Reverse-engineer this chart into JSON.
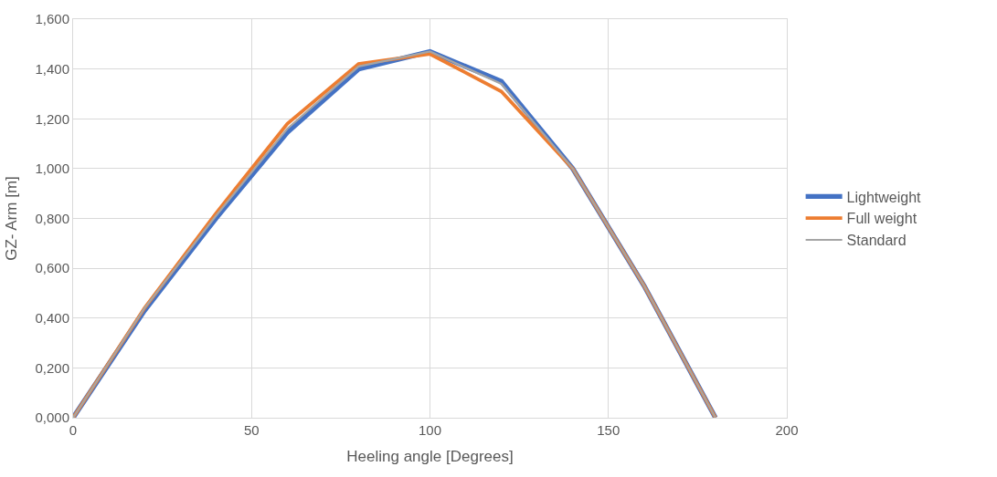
{
  "chart_data": {
    "type": "line",
    "xlabel": "Heeling angle [Degrees]",
    "ylabel": "GZ- Arm [m]",
    "x": [
      0,
      20,
      40,
      60,
      80,
      100,
      120,
      140,
      160,
      180
    ],
    "series": [
      {
        "name": "Lightweight",
        "color": "#4472c4",
        "values": [
          0,
          0.43,
          0.8,
          1.145,
          1.4,
          1.47,
          1.35,
          1.0,
          0.53,
          0
        ]
      },
      {
        "name": "Full weight",
        "color": "#ed7d31",
        "values": [
          0,
          0.44,
          0.82,
          1.18,
          1.42,
          1.46,
          1.31,
          1.0,
          0.53,
          0
        ]
      },
      {
        "name": "Standard",
        "color": "#a5a5a5",
        "values": [
          0,
          0.44,
          0.81,
          1.16,
          1.41,
          1.47,
          1.34,
          1.0,
          0.53,
          0
        ]
      }
    ],
    "xlim": [
      0,
      200
    ],
    "xticks": [
      0,
      50,
      100,
      150,
      200
    ],
    "ylim": [
      0,
      1.6
    ],
    "yticks": [
      {
        "value": 0,
        "label": "0,000"
      },
      {
        "value": 0.2,
        "label": "0,200"
      },
      {
        "value": 0.4,
        "label": "0,400"
      },
      {
        "value": 0.6,
        "label": "0,600"
      },
      {
        "value": 0.8,
        "label": "0,800"
      },
      {
        "value": 1.0,
        "label": "1,000"
      },
      {
        "value": 1.2,
        "label": "1,200"
      },
      {
        "value": 1.4,
        "label": "1,400"
      },
      {
        "value": 1.6,
        "label": "1,600"
      }
    ],
    "grid": true,
    "legend": "right",
    "marker": "none",
    "line_style": "solid"
  }
}
